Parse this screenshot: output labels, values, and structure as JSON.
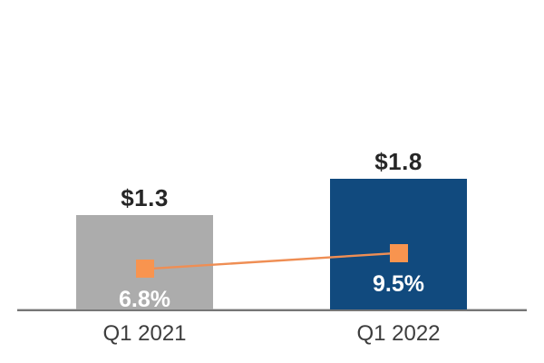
{
  "chart_data": {
    "type": "combo",
    "categories": [
      "Q1 2021",
      "Q1 2022"
    ],
    "series": [
      {
        "name": "bar-series",
        "type": "bar",
        "values": [
          1.3,
          1.8
        ],
        "data_labels": [
          "$1.3",
          "$1.8"
        ],
        "bar_colors": [
          "#ACACAC",
          "#114A7E"
        ],
        "data_label_color": "#262626"
      },
      {
        "name": "line-series",
        "type": "line",
        "values": [
          6.8,
          9.5
        ],
        "data_labels": [
          "6.8%",
          "9.5%"
        ],
        "marker": "square",
        "marker_color": "#F8944F",
        "line_color": "#EF8E54",
        "data_label_color": "#FFFFFF"
      }
    ],
    "title": "",
    "xlabel": "",
    "ylabel": "",
    "legend": "none",
    "gridlines": false,
    "axis_line_color": "#767676",
    "category_label_color": "#3D3D3D",
    "background": "#FFFFFF"
  }
}
